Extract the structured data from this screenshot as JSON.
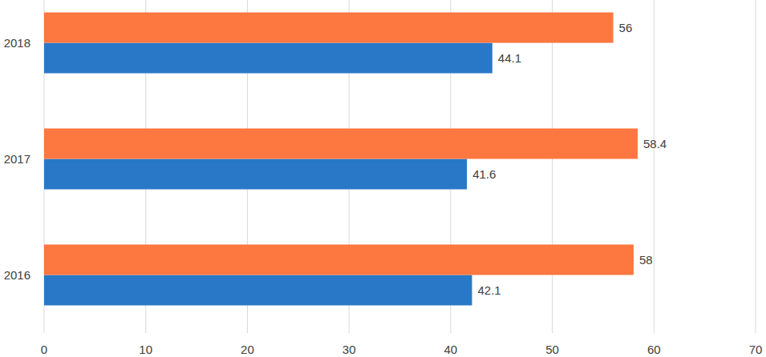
{
  "chart_data": {
    "type": "bar",
    "orientation": "horizontal",
    "categories": [
      "2016",
      "2017",
      "2018"
    ],
    "series": [
      {
        "color": "#2878c7",
        "values": [
          42.1,
          41.6,
          44.1
        ]
      },
      {
        "color": "#fd7740",
        "values": [
          58,
          58.4,
          56
        ]
      }
    ],
    "xlim": [
      0,
      70
    ],
    "xticks": [
      0,
      10,
      20,
      30,
      40,
      50,
      60,
      70
    ],
    "grid": true,
    "data_labels": true
  }
}
